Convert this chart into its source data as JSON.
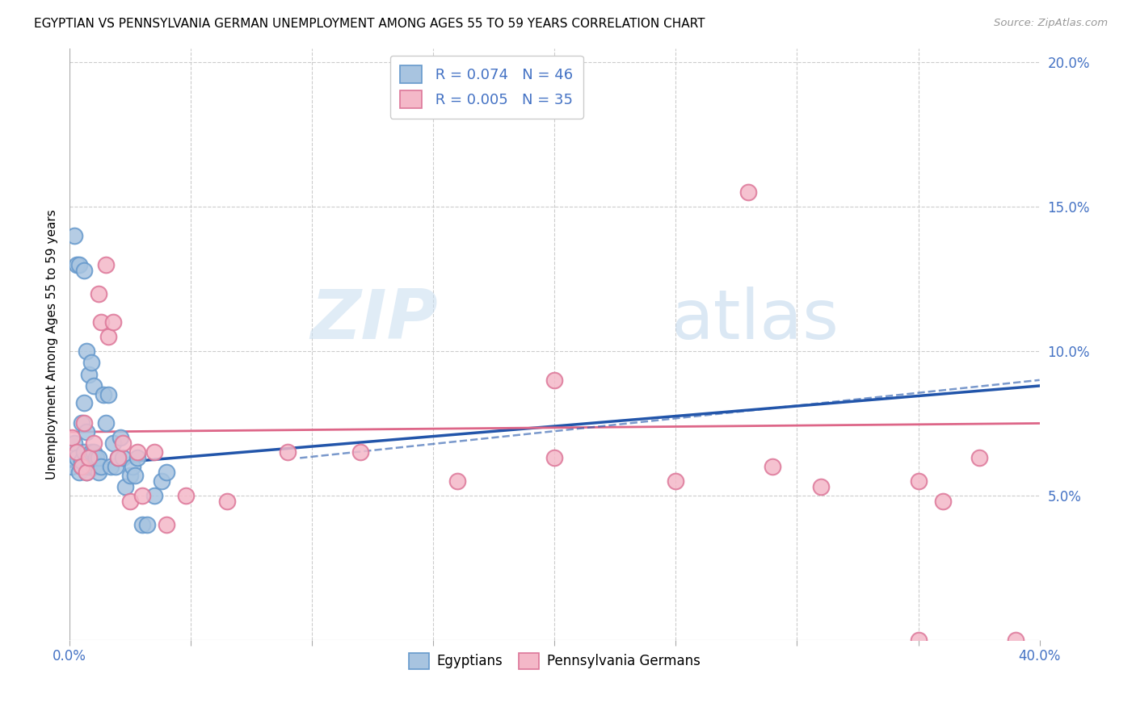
{
  "title": "EGYPTIAN VS PENNSYLVANIA GERMAN UNEMPLOYMENT AMONG AGES 55 TO 59 YEARS CORRELATION CHART",
  "source": "Source: ZipAtlas.com",
  "ylabel": "Unemployment Among Ages 55 to 59 years",
  "xlim": [
    0,
    0.4
  ],
  "ylim": [
    0,
    0.205
  ],
  "xticks": [
    0.0,
    0.05,
    0.1,
    0.15,
    0.2,
    0.25,
    0.3,
    0.35,
    0.4
  ],
  "xticklabels": [
    "0.0%",
    "",
    "",
    "",
    "",
    "",
    "",
    "",
    "40.0%"
  ],
  "yticks_right": [
    0.05,
    0.1,
    0.15,
    0.2
  ],
  "ytick_right_labels": [
    "5.0%",
    "10.0%",
    "15.0%",
    "20.0%"
  ],
  "egyptian_color": "#a8c4e0",
  "egyptian_edge": "#6699cc",
  "pa_german_color": "#f4b8c8",
  "pa_german_edge": "#dd7799",
  "trend_egyptian_color": "#2255aa",
  "trend_pa_color": "#dd6688",
  "legend_R_egyptian": "R = 0.074",
  "legend_N_egyptian": "N = 46",
  "legend_R_pa": "R = 0.005",
  "legend_N_pa": "N = 35",
  "watermark_zip": "ZIP",
  "watermark_atlas": "atlas",
  "grid_color": "#dddddd",
  "grid_dashed_color": "#cccccc",
  "egyptian_x": [
    0.001,
    0.002,
    0.002,
    0.003,
    0.003,
    0.004,
    0.004,
    0.005,
    0.005,
    0.005,
    0.006,
    0.006,
    0.006,
    0.007,
    0.007,
    0.007,
    0.008,
    0.008,
    0.009,
    0.009,
    0.01,
    0.01,
    0.01,
    0.011,
    0.012,
    0.012,
    0.013,
    0.014,
    0.015,
    0.016,
    0.017,
    0.018,
    0.019,
    0.02,
    0.021,
    0.022,
    0.023,
    0.025,
    0.026,
    0.027,
    0.028,
    0.03,
    0.032,
    0.035,
    0.038,
    0.04
  ],
  "egyptian_y": [
    0.06,
    0.068,
    0.14,
    0.063,
    0.13,
    0.058,
    0.13,
    0.06,
    0.062,
    0.075,
    0.065,
    0.082,
    0.128,
    0.058,
    0.072,
    0.1,
    0.06,
    0.092,
    0.065,
    0.096,
    0.065,
    0.088,
    0.06,
    0.063,
    0.058,
    0.063,
    0.06,
    0.085,
    0.075,
    0.085,
    0.06,
    0.068,
    0.06,
    0.063,
    0.07,
    0.063,
    0.053,
    0.057,
    0.06,
    0.057,
    0.063,
    0.04,
    0.04,
    0.05,
    0.055,
    0.058
  ],
  "pa_x": [
    0.001,
    0.003,
    0.005,
    0.006,
    0.007,
    0.008,
    0.01,
    0.012,
    0.013,
    0.015,
    0.016,
    0.018,
    0.02,
    0.022,
    0.025,
    0.028,
    0.03,
    0.035,
    0.04,
    0.048,
    0.065,
    0.09,
    0.12,
    0.16,
    0.2,
    0.25,
    0.29,
    0.31,
    0.35,
    0.36,
    0.375,
    0.39,
    0.2,
    0.28,
    0.35
  ],
  "pa_y": [
    0.07,
    0.065,
    0.06,
    0.075,
    0.058,
    0.063,
    0.068,
    0.12,
    0.11,
    0.13,
    0.105,
    0.11,
    0.063,
    0.068,
    0.048,
    0.065,
    0.05,
    0.065,
    0.04,
    0.05,
    0.048,
    0.065,
    0.065,
    0.055,
    0.063,
    0.055,
    0.06,
    0.053,
    0.055,
    0.048,
    0.063,
    0.0,
    0.09,
    0.155,
    0.0
  ],
  "trend_e_x0": 0.0,
  "trend_e_y0": 0.06,
  "trend_e_x1": 0.4,
  "trend_e_y1": 0.088,
  "trend_p_x0": 0.0,
  "trend_p_y0": 0.072,
  "trend_p_x1": 0.4,
  "trend_p_y1": 0.075,
  "trend_dashed_x0": 0.095,
  "trend_dashed_y0": 0.063,
  "trend_dashed_x1": 0.4,
  "trend_dashed_y1": 0.09
}
